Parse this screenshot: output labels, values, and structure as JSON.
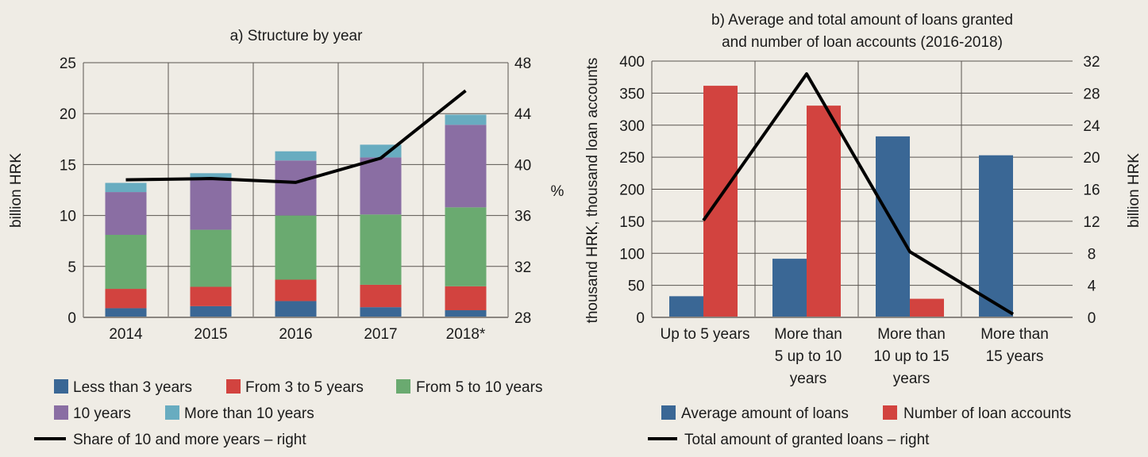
{
  "chart_data": [
    {
      "type": "bar",
      "stacked": true,
      "title": "a) Structure by year",
      "ylabel": "billion HRK",
      "ylabel_right": "%",
      "ylim": [
        0,
        25
      ],
      "yticks": [
        "0",
        "5",
        "10",
        "15",
        "20",
        "25"
      ],
      "ylim_right": [
        28,
        48
      ],
      "yticks_right": [
        "28",
        "32",
        "36",
        "40",
        "44",
        "48"
      ],
      "grid": true,
      "legend_placement": "bottom",
      "categories": [
        "2014",
        "2015",
        "2016",
        "2017",
        "2018*"
      ],
      "series": [
        {
          "name": "Less than 3 years",
          "color": "#3a6795",
          "values": [
            0.9,
            1.1,
            1.6,
            1.0,
            0.7
          ]
        },
        {
          "name": "From 3 to 5 years",
          "color": "#d2433f",
          "values": [
            1.9,
            1.9,
            2.1,
            2.2,
            2.35
          ]
        },
        {
          "name": "From 5 to 10 years",
          "color": "#6aaa70",
          "values": [
            5.3,
            5.6,
            6.3,
            6.9,
            7.75
          ]
        },
        {
          "name": "10 years",
          "color": "#8a6ea3",
          "values": [
            4.2,
            5.1,
            5.4,
            5.6,
            8.1
          ]
        },
        {
          "name": "More than 10 years",
          "color": "#68acc0",
          "values": [
            0.9,
            0.45,
            0.9,
            1.25,
            1.0
          ]
        }
      ],
      "line_series": {
        "name": "Share of 10 and more years – right",
        "color": "#000000",
        "axis": "right",
        "values": [
          38.8,
          38.9,
          38.6,
          40.5,
          45.8
        ]
      }
    },
    {
      "type": "bar",
      "stacked": false,
      "title": "b) Average and tоtal amount of loans granted",
      "title_line2": "and number of loan accounts (2016-2018)",
      "ylabel": "thousand HRK, thousand loan accounts",
      "ylabel_right": "billion HRK",
      "ylim": [
        0,
        400
      ],
      "yticks": [
        "0",
        "50",
        "100",
        "150",
        "200",
        "250",
        "300",
        "350",
        "400"
      ],
      "ylim_right": [
        0,
        32
      ],
      "yticks_right": [
        "0",
        "4",
        "8",
        "12",
        "16",
        "20",
        "24",
        "28",
        "32"
      ],
      "grid": true,
      "legend_placement": "bottom",
      "categories": [
        [
          "Up to 5 years"
        ],
        [
          "More than",
          "5 up to 10",
          "years"
        ],
        [
          "More than",
          "10 up to 15",
          "years"
        ],
        [
          "More than",
          "15 years"
        ]
      ],
      "series": [
        {
          "name": "Average amount of loans",
          "color": "#3a6795",
          "values": [
            33,
            91.5,
            282.5,
            253
          ]
        },
        {
          "name": "Number of loan accounts",
          "color": "#d2433f",
          "values": [
            361.5,
            330.5,
            29,
            1
          ]
        }
      ],
      "line_series": {
        "name": "Total amount of granted loans – right",
        "color": "#000000",
        "axis": "right",
        "values": [
          12.1,
          30.4,
          8.2,
          0.4
        ]
      }
    }
  ]
}
